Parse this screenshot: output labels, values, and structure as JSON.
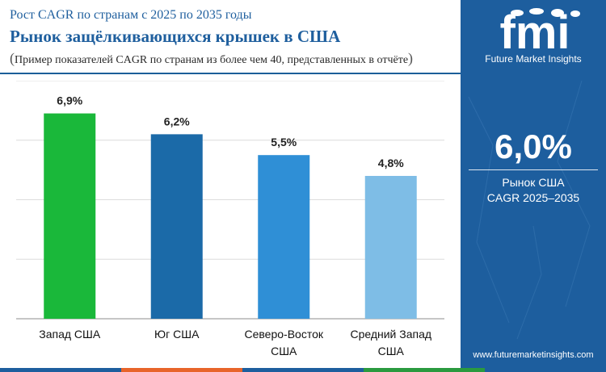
{
  "header": {
    "subtitle": "Рост CAGR по странам с 2025 по 2035 годы",
    "title": "Рынок защёлкивающихся крышек в США",
    "note_open": "(",
    "note_text": "Пример показателей CAGR по странам из более чем 40, представленных в отчёте",
    "note_close": ")"
  },
  "chart_data": {
    "type": "bar",
    "categories": [
      "Запад США",
      "Юг США",
      "Северо-Восток США",
      "Средний Запад США"
    ],
    "category_lines": [
      [
        "Запад США"
      ],
      [
        "Юг США"
      ],
      [
        "Северо-Восток",
        "США"
      ],
      [
        "Средний Запад",
        "США"
      ]
    ],
    "values": [
      6.9,
      6.2,
      5.5,
      4.8
    ],
    "data_labels": [
      "6,9%",
      "6,2%",
      "5,5%",
      "4,8%"
    ],
    "ylim": [
      0,
      8
    ],
    "grid": true,
    "colors": [
      "#1ab83a",
      "#1b6aa8",
      "#2f8fd6",
      "#7ebde6"
    ]
  },
  "sidebar": {
    "logo_text": "fmi",
    "brand": "Future Market Insights",
    "kpi_value": "6,0%",
    "kpi_label_line1": "Рынок США",
    "kpi_label_line2": "CAGR 2025–2035",
    "url": "www.futuremarketinsights.com"
  },
  "colors": {
    "title": "#1f5f9e",
    "sidebar_bg": "#1d5e9e",
    "strip": [
      "#1d5e9e",
      "#e8642a",
      "#1d5e9e",
      "#2a9a3f",
      "#1d5e9e"
    ]
  }
}
